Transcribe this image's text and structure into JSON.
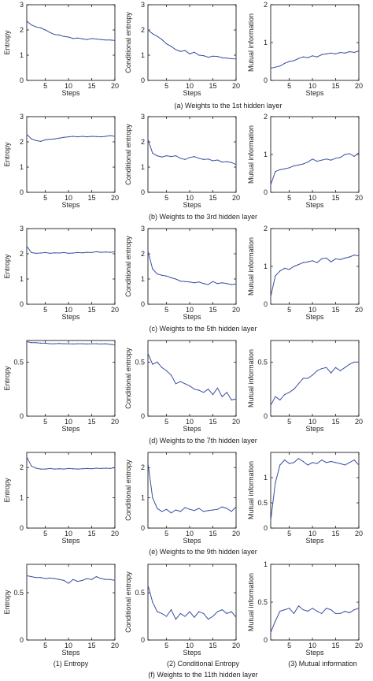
{
  "figure": {
    "captions": [
      "(a) Weights to the 1st hidden layer",
      "(b) Weights to the 3rd hidden layer",
      "(c) Weights to the 5th hidden layer",
      "(d) Weights to the 7th hidden layer",
      "(e) Weights to the 9th hidden layer",
      "(f) Weights to the 11th hidden layer"
    ],
    "column_titles": [
      "(1) Entropy",
      "(2) Conditional Entropy",
      "(3) Mutual information"
    ],
    "line_color": "#3a4fa0"
  },
  "chart_data": [
    {
      "type": "line",
      "row": 0,
      "col": 0,
      "xlabel": "Steps",
      "ylabel": "Entropy",
      "ylim": [
        0,
        3
      ],
      "yticks": [
        "0",
        "1",
        "2",
        "3"
      ],
      "xlim": [
        1,
        20
      ],
      "xticks": [
        "5",
        "10",
        "15",
        "20"
      ],
      "x": [
        1,
        2,
        3,
        4,
        5,
        6,
        7,
        8,
        9,
        10,
        11,
        12,
        13,
        14,
        15,
        16,
        17,
        18,
        19,
        20
      ],
      "values": [
        2.35,
        2.2,
        2.12,
        2.08,
        2.0,
        1.9,
        1.82,
        1.8,
        1.74,
        1.72,
        1.66,
        1.68,
        1.65,
        1.62,
        1.66,
        1.64,
        1.62,
        1.6,
        1.6,
        1.58
      ]
    },
    {
      "type": "line",
      "row": 0,
      "col": 1,
      "xlabel": "Steps",
      "ylabel": "Conditional entropy",
      "ylim": [
        0,
        3
      ],
      "yticks": [
        "0",
        "1",
        "2",
        "3"
      ],
      "xlim": [
        1,
        20
      ],
      "xticks": [
        "5",
        "10",
        "15",
        "20"
      ],
      "x": [
        1,
        2,
        3,
        4,
        5,
        6,
        7,
        8,
        9,
        10,
        11,
        12,
        13,
        14,
        15,
        16,
        17,
        18,
        19,
        20
      ],
      "values": [
        2.0,
        1.85,
        1.75,
        1.62,
        1.45,
        1.35,
        1.22,
        1.15,
        1.18,
        1.05,
        1.12,
        1.0,
        0.98,
        0.92,
        0.96,
        0.95,
        0.9,
        0.88,
        0.86,
        0.85
      ]
    },
    {
      "type": "line",
      "row": 0,
      "col": 2,
      "xlabel": "Steps",
      "ylabel": "Mutual information",
      "ylim": [
        0,
        2
      ],
      "yticks": [
        "0",
        "1",
        "2"
      ],
      "xlim": [
        1,
        20
      ],
      "xticks": [
        "5",
        "10",
        "15",
        "20"
      ],
      "x": [
        1,
        2,
        3,
        4,
        5,
        6,
        7,
        8,
        9,
        10,
        11,
        12,
        13,
        14,
        15,
        16,
        17,
        18,
        19,
        20
      ],
      "values": [
        0.32,
        0.35,
        0.38,
        0.45,
        0.5,
        0.52,
        0.58,
        0.62,
        0.6,
        0.65,
        0.62,
        0.68,
        0.7,
        0.72,
        0.7,
        0.74,
        0.72,
        0.76,
        0.74,
        0.78
      ]
    },
    {
      "type": "line",
      "row": 1,
      "col": 0,
      "xlabel": "Steps",
      "ylabel": "Entropy",
      "ylim": [
        0,
        3
      ],
      "yticks": [
        "0",
        "1",
        "2",
        "3"
      ],
      "xlim": [
        1,
        20
      ],
      "xticks": [
        "5",
        "10",
        "15",
        "20"
      ],
      "x": [
        1,
        2,
        3,
        4,
        5,
        6,
        7,
        8,
        9,
        10,
        11,
        12,
        13,
        14,
        15,
        16,
        17,
        18,
        19,
        20
      ],
      "values": [
        2.3,
        2.12,
        2.05,
        2.02,
        2.08,
        2.1,
        2.12,
        2.15,
        2.18,
        2.2,
        2.22,
        2.2,
        2.22,
        2.2,
        2.22,
        2.21,
        2.2,
        2.22,
        2.25,
        2.22
      ]
    },
    {
      "type": "line",
      "row": 1,
      "col": 1,
      "xlabel": "Steps",
      "ylabel": "Conditional entropy",
      "ylim": [
        0,
        3
      ],
      "yticks": [
        "0",
        "1",
        "2",
        "3"
      ],
      "xlim": [
        1,
        20
      ],
      "xticks": [
        "5",
        "10",
        "15",
        "20"
      ],
      "x": [
        1,
        2,
        3,
        4,
        5,
        6,
        7,
        8,
        9,
        10,
        11,
        12,
        13,
        14,
        15,
        16,
        17,
        18,
        19,
        20
      ],
      "values": [
        2.1,
        1.55,
        1.45,
        1.4,
        1.45,
        1.42,
        1.45,
        1.35,
        1.3,
        1.38,
        1.42,
        1.35,
        1.3,
        1.32,
        1.25,
        1.28,
        1.2,
        1.22,
        1.18,
        1.1
      ]
    },
    {
      "type": "line",
      "row": 1,
      "col": 2,
      "xlabel": "Steps",
      "ylabel": "Mutual information",
      "ylim": [
        0,
        2
      ],
      "yticks": [
        "0",
        "1",
        "2"
      ],
      "xlim": [
        1,
        20
      ],
      "xticks": [
        "5",
        "10",
        "15",
        "20"
      ],
      "x": [
        1,
        2,
        3,
        4,
        5,
        6,
        7,
        8,
        9,
        10,
        11,
        12,
        13,
        14,
        15,
        16,
        17,
        18,
        19,
        20
      ],
      "values": [
        0.2,
        0.55,
        0.6,
        0.62,
        0.65,
        0.7,
        0.72,
        0.75,
        0.8,
        0.88,
        0.82,
        0.85,
        0.88,
        0.85,
        0.9,
        0.92,
        1.0,
        1.02,
        0.95,
        1.05
      ]
    },
    {
      "type": "line",
      "row": 2,
      "col": 0,
      "xlabel": "Steps",
      "ylabel": "Entropy",
      "ylim": [
        0,
        3
      ],
      "yticks": [
        "0",
        "1",
        "2",
        "3"
      ],
      "xlim": [
        1,
        20
      ],
      "xticks": [
        "5",
        "10",
        "15",
        "20"
      ],
      "x": [
        1,
        2,
        3,
        4,
        5,
        6,
        7,
        8,
        9,
        10,
        11,
        12,
        13,
        14,
        15,
        16,
        17,
        18,
        19,
        20
      ],
      "values": [
        2.3,
        2.05,
        2.02,
        2.03,
        2.05,
        2.02,
        2.04,
        2.03,
        2.05,
        2.02,
        2.03,
        2.05,
        2.04,
        2.06,
        2.05,
        2.08,
        2.06,
        2.07,
        2.06,
        2.08
      ]
    },
    {
      "type": "line",
      "row": 2,
      "col": 1,
      "xlabel": "Steps",
      "ylabel": "Conditional entropy",
      "ylim": [
        0,
        3
      ],
      "yticks": [
        "0",
        "1",
        "2",
        "3"
      ],
      "xlim": [
        1,
        20
      ],
      "xticks": [
        "5",
        "10",
        "15",
        "20"
      ],
      "x": [
        1,
        2,
        3,
        4,
        5,
        6,
        7,
        8,
        9,
        10,
        11,
        12,
        13,
        14,
        15,
        16,
        17,
        18,
        19,
        20
      ],
      "values": [
        2.1,
        1.4,
        1.2,
        1.15,
        1.12,
        1.05,
        1.0,
        0.92,
        0.9,
        0.88,
        0.85,
        0.88,
        0.82,
        0.78,
        0.9,
        0.82,
        0.85,
        0.82,
        0.78,
        0.8
      ]
    },
    {
      "type": "line",
      "row": 2,
      "col": 2,
      "xlabel": "Steps",
      "ylabel": "Mutual information",
      "ylim": [
        0,
        2
      ],
      "yticks": [
        "0",
        "1",
        "2"
      ],
      "xlim": [
        1,
        20
      ],
      "xticks": [
        "5",
        "10",
        "15",
        "20"
      ],
      "x": [
        1,
        2,
        3,
        4,
        5,
        6,
        7,
        8,
        9,
        10,
        11,
        12,
        13,
        14,
        15,
        16,
        17,
        18,
        19,
        20
      ],
      "values": [
        0.2,
        0.75,
        0.88,
        0.95,
        0.92,
        1.0,
        1.05,
        1.1,
        1.12,
        1.15,
        1.1,
        1.2,
        1.22,
        1.12,
        1.2,
        1.18,
        1.22,
        1.25,
        1.3,
        1.28
      ]
    },
    {
      "type": "line",
      "row": 3,
      "col": 0,
      "xlabel": "Steps",
      "ylabel": "Entropy",
      "ylim": [
        0,
        0.7
      ],
      "yticks": [
        "0",
        "0.5"
      ],
      "xlim": [
        1,
        20
      ],
      "xticks": [
        "5",
        "10",
        "15",
        "20"
      ],
      "x": [
        1,
        2,
        3,
        4,
        5,
        6,
        7,
        8,
        9,
        10,
        11,
        12,
        13,
        14,
        15,
        16,
        17,
        18,
        19,
        20
      ],
      "values": [
        0.69,
        0.68,
        0.68,
        0.675,
        0.675,
        0.67,
        0.67,
        0.672,
        0.67,
        0.67,
        0.668,
        0.67,
        0.67,
        0.668,
        0.67,
        0.67,
        0.668,
        0.67,
        0.665,
        0.66
      ]
    },
    {
      "type": "line",
      "row": 3,
      "col": 1,
      "xlabel": "Steps",
      "ylabel": "Conditional entropy",
      "ylim": [
        0,
        0.7
      ],
      "yticks": [
        "0",
        "0.5"
      ],
      "xlim": [
        1,
        20
      ],
      "xticks": [
        "5",
        "10",
        "15",
        "20"
      ],
      "x": [
        1,
        2,
        3,
        4,
        5,
        6,
        7,
        8,
        9,
        10,
        11,
        12,
        13,
        14,
        15,
        16,
        17,
        18,
        19,
        20
      ],
      "values": [
        0.58,
        0.48,
        0.5,
        0.45,
        0.42,
        0.38,
        0.3,
        0.32,
        0.3,
        0.28,
        0.25,
        0.24,
        0.22,
        0.25,
        0.2,
        0.26,
        0.18,
        0.22,
        0.15,
        0.16
      ]
    },
    {
      "type": "line",
      "row": 3,
      "col": 2,
      "xlabel": "Steps",
      "ylabel": "Mutual information",
      "ylim": [
        0,
        0.7
      ],
      "yticks": [
        "0",
        "0.5"
      ],
      "xlim": [
        1,
        20
      ],
      "xticks": [
        "5",
        "10",
        "15",
        "20"
      ],
      "x": [
        1,
        2,
        3,
        4,
        5,
        6,
        7,
        8,
        9,
        10,
        11,
        12,
        13,
        14,
        15,
        16,
        17,
        18,
        19,
        20
      ],
      "values": [
        0.1,
        0.18,
        0.15,
        0.2,
        0.22,
        0.25,
        0.3,
        0.35,
        0.35,
        0.38,
        0.42,
        0.44,
        0.45,
        0.4,
        0.45,
        0.42,
        0.45,
        0.48,
        0.5,
        0.5
      ]
    },
    {
      "type": "line",
      "row": 4,
      "col": 0,
      "xlabel": "Steps",
      "ylabel": "Entropy",
      "ylim": [
        0,
        2.5
      ],
      "yticks": [
        "0",
        "1",
        "2"
      ],
      "xlim": [
        1,
        20
      ],
      "xticks": [
        "5",
        "10",
        "15",
        "20"
      ],
      "x": [
        1,
        2,
        3,
        4,
        5,
        6,
        7,
        8,
        9,
        10,
        11,
        12,
        13,
        14,
        15,
        16,
        17,
        18,
        19,
        20
      ],
      "values": [
        2.35,
        2.05,
        1.98,
        1.95,
        1.95,
        1.97,
        1.95,
        1.96,
        1.95,
        1.97,
        1.96,
        1.95,
        1.96,
        1.97,
        1.96,
        1.98,
        1.97,
        1.98,
        1.97,
        2.0
      ]
    },
    {
      "type": "line",
      "row": 4,
      "col": 1,
      "xlabel": "Steps",
      "ylabel": "Conditional entropy",
      "ylim": [
        0,
        2.5
      ],
      "yticks": [
        "0",
        "1",
        "2"
      ],
      "xlim": [
        1,
        20
      ],
      "xticks": [
        "5",
        "10",
        "15",
        "20"
      ],
      "x": [
        1,
        2,
        3,
        4,
        5,
        6,
        7,
        8,
        9,
        10,
        11,
        12,
        13,
        14,
        15,
        16,
        17,
        18,
        19,
        20
      ],
      "values": [
        2.15,
        1.0,
        0.65,
        0.55,
        0.62,
        0.5,
        0.6,
        0.55,
        0.68,
        0.62,
        0.58,
        0.65,
        0.55,
        0.58,
        0.6,
        0.62,
        0.7,
        0.65,
        0.55,
        0.7
      ]
    },
    {
      "type": "line",
      "row": 4,
      "col": 2,
      "xlabel": "Steps",
      "ylabel": "Mutual information",
      "ylim": [
        0,
        1.5
      ],
      "yticks": [
        "0",
        "0.5",
        "1"
      ],
      "xlim": [
        1,
        20
      ],
      "xticks": [
        "5",
        "10",
        "15",
        "20"
      ],
      "x": [
        1,
        2,
        3,
        4,
        5,
        6,
        7,
        8,
        9,
        10,
        11,
        12,
        13,
        14,
        15,
        16,
        17,
        18,
        19,
        20
      ],
      "values": [
        0.15,
        0.9,
        1.25,
        1.35,
        1.28,
        1.3,
        1.38,
        1.32,
        1.25,
        1.3,
        1.28,
        1.35,
        1.3,
        1.32,
        1.3,
        1.28,
        1.25,
        1.3,
        1.35,
        1.25
      ]
    },
    {
      "type": "line",
      "row": 5,
      "col": 0,
      "xlabel": "Steps",
      "ylabel": "Entropy",
      "ylim": [
        0,
        0.8
      ],
      "yticks": [
        "0",
        "0.5"
      ],
      "xlim": [
        1,
        20
      ],
      "xticks": [
        "5",
        "10",
        "15",
        "20"
      ],
      "x": [
        1,
        2,
        3,
        4,
        5,
        6,
        7,
        8,
        9,
        10,
        11,
        12,
        13,
        14,
        15,
        16,
        17,
        18,
        19,
        20
      ],
      "values": [
        0.68,
        0.67,
        0.66,
        0.66,
        0.65,
        0.655,
        0.65,
        0.64,
        0.63,
        0.6,
        0.64,
        0.62,
        0.63,
        0.65,
        0.64,
        0.67,
        0.65,
        0.64,
        0.64,
        0.63
      ]
    },
    {
      "type": "line",
      "row": 5,
      "col": 1,
      "xlabel": "Steps",
      "ylabel": "Conditional entropy",
      "ylim": [
        0,
        0.8
      ],
      "yticks": [
        "0",
        "0.5"
      ],
      "xlim": [
        1,
        20
      ],
      "xticks": [
        "5",
        "10",
        "15",
        "20"
      ],
      "x": [
        1,
        2,
        3,
        4,
        5,
        6,
        7,
        8,
        9,
        10,
        11,
        12,
        13,
        14,
        15,
        16,
        17,
        18,
        19,
        20
      ],
      "values": [
        0.58,
        0.4,
        0.3,
        0.28,
        0.25,
        0.32,
        0.22,
        0.28,
        0.25,
        0.3,
        0.24,
        0.3,
        0.28,
        0.22,
        0.25,
        0.3,
        0.32,
        0.28,
        0.3,
        0.24
      ]
    },
    {
      "type": "line",
      "row": 5,
      "col": 2,
      "xlabel": "Steps",
      "ylabel": "Mutual information",
      "ylim": [
        0,
        1
      ],
      "yticks": [
        "0",
        "0.5",
        "1"
      ],
      "xlim": [
        1,
        20
      ],
      "xticks": [
        "5",
        "10",
        "15",
        "20"
      ],
      "x": [
        1,
        2,
        3,
        4,
        5,
        6,
        7,
        8,
        9,
        10,
        11,
        12,
        13,
        14,
        15,
        16,
        17,
        18,
        19,
        20
      ],
      "values": [
        0.1,
        0.25,
        0.38,
        0.4,
        0.42,
        0.35,
        0.45,
        0.4,
        0.38,
        0.42,
        0.38,
        0.35,
        0.42,
        0.4,
        0.35,
        0.35,
        0.38,
        0.36,
        0.4,
        0.42
      ]
    }
  ]
}
